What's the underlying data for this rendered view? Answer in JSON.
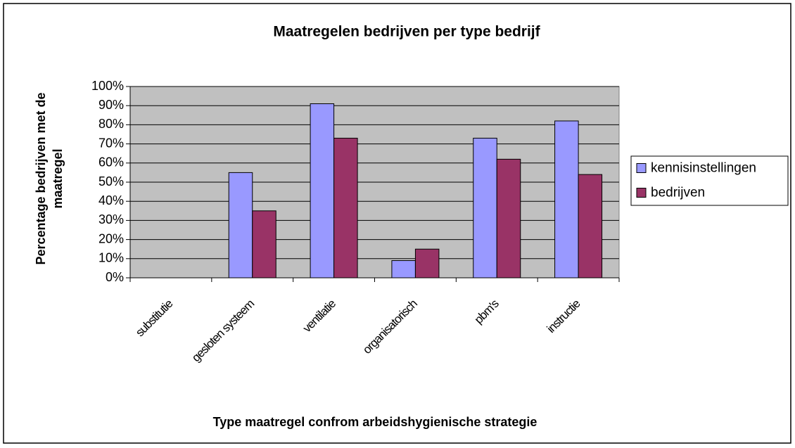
{
  "chart_data": {
    "type": "bar",
    "title": "Maatregelen bedrijven per type bedrijf",
    "x_label": "Type maatregel confrom arbeidshygienische strategie",
    "y_label": "Percentage bedrijven met de maatregel",
    "categories": [
      "substitutie",
      "gesloten systeem",
      "ventilatie",
      "organisatorisch",
      "pbm's",
      "instructie"
    ],
    "series": [
      {
        "name": "kennisinstellingen",
        "color": "#9999ff",
        "values": [
          0,
          55,
          91,
          9,
          73,
          82
        ]
      },
      {
        "name": "bedrijven",
        "color": "#993366",
        "values": [
          0,
          35,
          73,
          15,
          62,
          54
        ]
      }
    ],
    "ylim": [
      0,
      100
    ],
    "yticks": [
      {
        "value": 0,
        "label": "0%"
      },
      {
        "value": 10,
        "label": "10%"
      },
      {
        "value": 20,
        "label": "20%"
      },
      {
        "value": 30,
        "label": "30%"
      },
      {
        "value": 40,
        "label": "40%"
      },
      {
        "value": 50,
        "label": "50%"
      },
      {
        "value": 60,
        "label": "60%"
      },
      {
        "value": 70,
        "label": "70%"
      },
      {
        "value": 80,
        "label": "80%"
      },
      {
        "value": 90,
        "label": "90%"
      },
      {
        "value": 100,
        "label": "100%"
      }
    ],
    "grid": true,
    "legend": "right",
    "plot_background": "#c0c0c0"
  }
}
